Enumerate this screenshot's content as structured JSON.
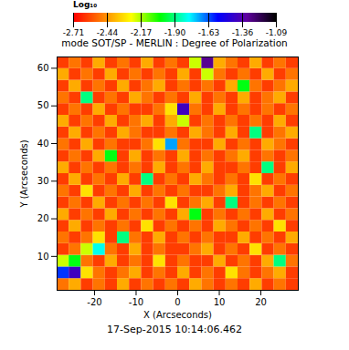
{
  "chart_data": {
    "type": "heatmap",
    "title": "mode SOT/SP - MERLIN : Degree of Polarization",
    "caption": "17-Sep-2015 10:14:06.462",
    "x_label": "X (Arcseconds)",
    "y_label": "Y (Arcseconds)",
    "xlim": [
      -29,
      29
    ],
    "ylim": [
      1,
      63
    ],
    "xticks": [
      -20,
      -10,
      0,
      10,
      20
    ],
    "yticks": [
      10,
      20,
      30,
      40,
      50,
      60
    ],
    "colorbar": {
      "label": "Log₁₀",
      "range": [
        -2.71,
        -1.09
      ],
      "ticks": [
        -2.71,
        -2.44,
        -2.17,
        {
          "value": -1.9,
          "label": "-1.90"
        },
        -1.63,
        -1.36,
        -1.09
      ]
    },
    "cells": {
      "x": [
        -27.55,
        -24.65,
        -21.75,
        -18.85,
        -15.95,
        -13.05,
        -10.15,
        -7.25,
        -4.35,
        -1.45,
        1.45,
        4.35,
        7.25,
        10.15,
        13.05,
        15.95,
        18.85,
        21.75,
        24.65,
        27.55
      ],
      "y": [
        2.55,
        5.65,
        8.75,
        11.85,
        14.95,
        18.05,
        21.15,
        24.25,
        27.35,
        30.45,
        33.55,
        36.65,
        39.75,
        42.85,
        45.95,
        49.05,
        52.15,
        55.25,
        58.35,
        61.45
      ],
      "values": [
        [
          -2.5,
          -2.4,
          -2.6,
          -2.5,
          -2.6,
          -2.4,
          -2.6,
          -2.5,
          -2.6,
          -2.5,
          -2.6,
          -2.4,
          -2.5,
          -2.6,
          -2.5,
          -2.6,
          -2.4,
          -2.6,
          -2.5,
          -2.6
        ],
        [
          -1.6,
          -1.4,
          -2.3,
          -2.5,
          -2.6,
          -2.5,
          -2.4,
          -2.6,
          -2.5,
          -2.6,
          -2.4,
          -2.6,
          -2.5,
          -2.6,
          -2.3,
          -2.5,
          -2.6,
          -2.5,
          -2.4,
          -2.6
        ],
        [
          -2.2,
          -2.0,
          -2.5,
          -2.6,
          -2.4,
          -2.6,
          -2.5,
          -2.6,
          -2.3,
          -2.6,
          -2.5,
          -2.6,
          -2.6,
          -2.4,
          -2.6,
          -2.5,
          -2.6,
          -2.4,
          -1.9,
          -2.5
        ],
        [
          -2.6,
          -2.5,
          -2.2,
          -1.8,
          -2.5,
          -2.6,
          -2.4,
          -2.6,
          -2.5,
          -2.6,
          -2.6,
          -2.5,
          -2.4,
          -2.6,
          -2.5,
          -2.6,
          -2.3,
          -2.6,
          -2.5,
          -2.6
        ],
        [
          -2.5,
          -2.6,
          -2.5,
          -2.3,
          -2.6,
          -1.9,
          -2.5,
          -2.6,
          -2.4,
          -2.6,
          -2.5,
          -2.6,
          -2.5,
          -2.6,
          -2.6,
          -2.4,
          -2.6,
          -2.5,
          -2.6,
          -2.4
        ],
        [
          -2.6,
          -2.4,
          -2.6,
          -2.5,
          -2.6,
          -2.5,
          -2.6,
          -2.3,
          -2.6,
          -2.5,
          -2.6,
          -2.5,
          -2.6,
          -2.4,
          -2.5,
          -2.6,
          -2.5,
          -2.6,
          -2.3,
          -2.6
        ],
        [
          -2.4,
          -2.6,
          -2.5,
          -2.6,
          -2.4,
          -2.6,
          -2.5,
          -2.6,
          -2.5,
          -2.6,
          -2.4,
          -2.0,
          -2.6,
          -2.5,
          -2.6,
          -2.5,
          -2.6,
          -2.4,
          -2.6,
          -2.5
        ],
        [
          -2.6,
          -2.5,
          -2.6,
          -2.4,
          -2.6,
          -2.5,
          -2.6,
          -2.5,
          -2.6,
          -2.3,
          -2.6,
          -2.5,
          -2.4,
          -2.6,
          -1.9,
          -2.6,
          -2.5,
          -2.6,
          -2.5,
          -2.6
        ],
        [
          -2.5,
          -2.6,
          -2.3,
          -2.6,
          -2.5,
          -2.6,
          -2.4,
          -2.6,
          -2.5,
          -2.6,
          -2.5,
          -2.6,
          -2.6,
          -2.5,
          -2.4,
          -2.6,
          -2.5,
          -2.4,
          -2.6,
          -2.5
        ],
        [
          -2.6,
          -2.4,
          -2.6,
          -2.5,
          -2.6,
          -2.4,
          -2.6,
          -1.9,
          -2.6,
          -2.5,
          -2.6,
          -2.4,
          -2.5,
          -2.6,
          -2.5,
          -2.6,
          -2.3,
          -2.6,
          -2.5,
          -2.6
        ],
        [
          -2.4,
          -2.6,
          -2.5,
          -2.6,
          -2.5,
          -2.6,
          -2.5,
          -2.6,
          -2.4,
          -2.6,
          -2.5,
          -2.6,
          -2.4,
          -2.6,
          -2.6,
          -2.5,
          -2.6,
          -1.9,
          -2.6,
          -2.4
        ],
        [
          -2.6,
          -2.5,
          -2.6,
          -2.4,
          -2.0,
          -2.6,
          -2.4,
          -2.6,
          -2.5,
          -2.6,
          -2.4,
          -2.6,
          -2.5,
          -2.6,
          -2.5,
          -2.4,
          -2.6,
          -2.5,
          -2.6,
          -2.5
        ],
        [
          -2.5,
          -2.6,
          -2.4,
          -2.6,
          -2.5,
          -2.6,
          -2.6,
          -2.5,
          -2.3,
          -1.7,
          -2.5,
          -2.6,
          -2.6,
          -2.4,
          -2.6,
          -2.5,
          -2.6,
          -2.4,
          -2.5,
          -2.6
        ],
        [
          -2.6,
          -2.4,
          -2.6,
          -2.5,
          -2.6,
          -2.4,
          -2.5,
          -2.6,
          -2.6,
          -2.5,
          -2.6,
          -2.4,
          -2.5,
          -2.6,
          -2.4,
          -2.6,
          -1.9,
          -2.6,
          -2.5,
          -2.4
        ],
        [
          -2.4,
          -2.6,
          -2.5,
          -2.6,
          -2.4,
          -2.6,
          -2.5,
          -2.4,
          -2.6,
          -2.4,
          -2.2,
          -2.6,
          -2.5,
          -2.6,
          -2.5,
          -2.6,
          -2.5,
          -2.6,
          -2.4,
          -2.6
        ],
        [
          -2.6,
          -2.5,
          -2.6,
          -2.4,
          -2.6,
          -2.5,
          -2.6,
          -2.6,
          -2.5,
          -2.3,
          -1.4,
          -2.5,
          -2.6,
          -2.4,
          -2.6,
          -2.5,
          -2.6,
          -2.5,
          -2.6,
          -2.5
        ],
        [
          -2.5,
          -2.6,
          -1.9,
          -2.6,
          -2.5,
          -2.6,
          -2.4,
          -2.5,
          -2.6,
          -2.5,
          -2.6,
          -2.4,
          -2.6,
          -2.5,
          -2.6,
          -2.4,
          -2.6,
          -2.5,
          -2.4,
          -2.6
        ],
        [
          -2.6,
          -2.4,
          -2.6,
          -2.5,
          -2.6,
          -2.4,
          -2.6,
          -2.5,
          -2.4,
          -2.6,
          -2.5,
          -2.6,
          -2.5,
          -2.6,
          -2.4,
          -2.0,
          -2.5,
          -2.6,
          -2.5,
          -2.4
        ],
        [
          -2.4,
          -2.6,
          -2.5,
          -2.6,
          -2.4,
          -2.6,
          -2.5,
          -2.6,
          -2.5,
          -2.6,
          -2.4,
          -2.6,
          -2.2,
          -2.5,
          -2.6,
          -2.5,
          -2.6,
          -2.4,
          -2.6,
          -2.5
        ],
        [
          -2.6,
          -2.5,
          -2.6,
          -2.4,
          -2.6,
          -2.5,
          -2.6,
          -2.4,
          -2.6,
          -2.5,
          -2.6,
          -2.2,
          -1.3,
          -2.4,
          -2.5,
          -2.6,
          -2.4,
          -2.6,
          -2.5,
          -2.6
        ]
      ]
    }
  }
}
